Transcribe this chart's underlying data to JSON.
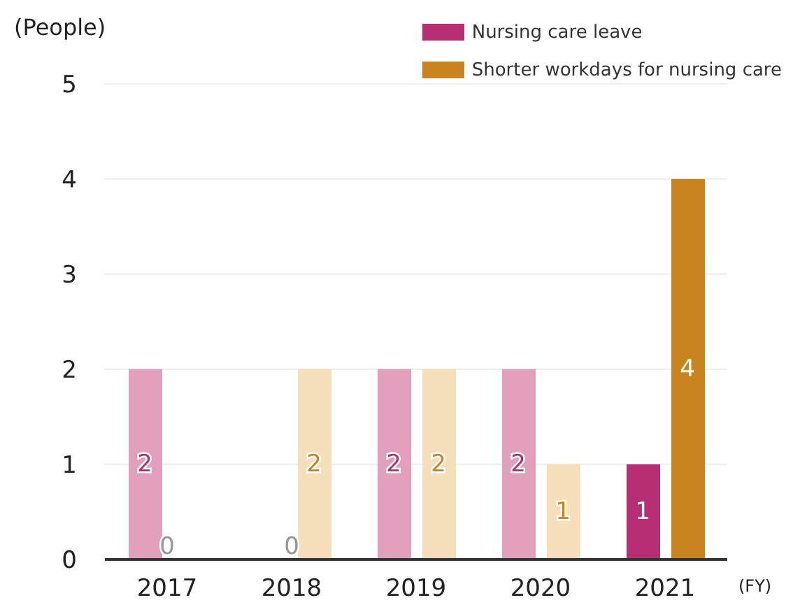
{
  "chart_data": {
    "type": "bar",
    "ylabel": "(People)",
    "xlabel": "(FY)",
    "categories": [
      "2017",
      "2018",
      "2019",
      "2020",
      "2021"
    ],
    "series": [
      {
        "name": "Nursing care leave",
        "color": "#b82e74",
        "colors": [
          "#e3a0bd",
          "#e3a0bd",
          "#e3a0bd",
          "#e3a0bd",
          "#b82e74"
        ],
        "values": [
          2,
          0,
          2,
          2,
          1
        ],
        "value_labels": [
          "2",
          null,
          "2",
          "2",
          "1"
        ]
      },
      {
        "name": "Shorter workdays for nursing care",
        "color": "#c9841f",
        "colors": [
          "#f5dfba",
          "#f5dfba",
          "#f5dfba",
          "#f5dfba",
          "#c9841f"
        ],
        "values": [
          0,
          2,
          2,
          1,
          4
        ],
        "value_labels": [
          null,
          "2",
          "2",
          "1",
          "4"
        ]
      }
    ],
    "annotations": [
      {
        "text": "0",
        "x": "2017",
        "y": 0
      },
      {
        "text": "0",
        "x": "2018",
        "y": 0
      }
    ],
    "ylim": [
      0,
      5
    ],
    "yticks": [
      0,
      1,
      2,
      3,
      4,
      5
    ],
    "grid": "y",
    "legend": "top right"
  }
}
